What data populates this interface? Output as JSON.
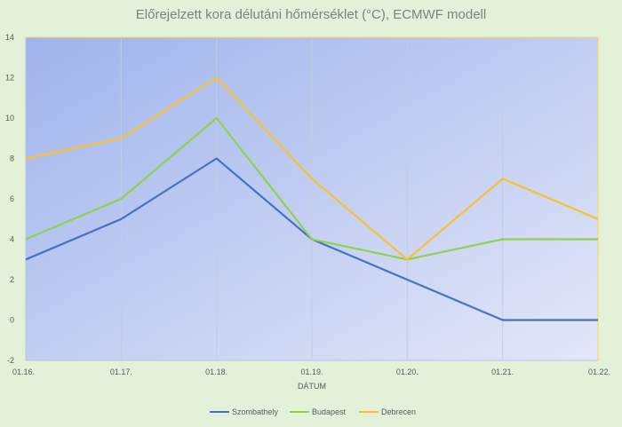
{
  "chart_data": {
    "type": "line",
    "title": "Előrejelzett kora délutáni hőmérséklet (°C), ECMWF modell",
    "xlabel": "DÁTUM",
    "ylabel": "",
    "categories": [
      "01.16.",
      "01.17.",
      "01.18.",
      "01.19.",
      "01.20.",
      "01.21.",
      "01.22."
    ],
    "ylim": [
      -2,
      14
    ],
    "yticks": [
      -2,
      0,
      2,
      4,
      6,
      8,
      10,
      12,
      14
    ],
    "grid": "vertical",
    "legend": "bottom",
    "series": [
      {
        "name": "Szombathely",
        "color": "#4472c4",
        "values": [
          3,
          5,
          8,
          4,
          2,
          0,
          0
        ]
      },
      {
        "name": "Budapest",
        "color": "#92d050",
        "values": [
          4,
          6,
          10,
          4,
          3,
          4,
          4
        ]
      },
      {
        "name": "Debrecen",
        "color": "#fbc02d",
        "values": [
          8,
          9,
          12,
          7,
          3,
          7,
          5
        ]
      }
    ]
  }
}
